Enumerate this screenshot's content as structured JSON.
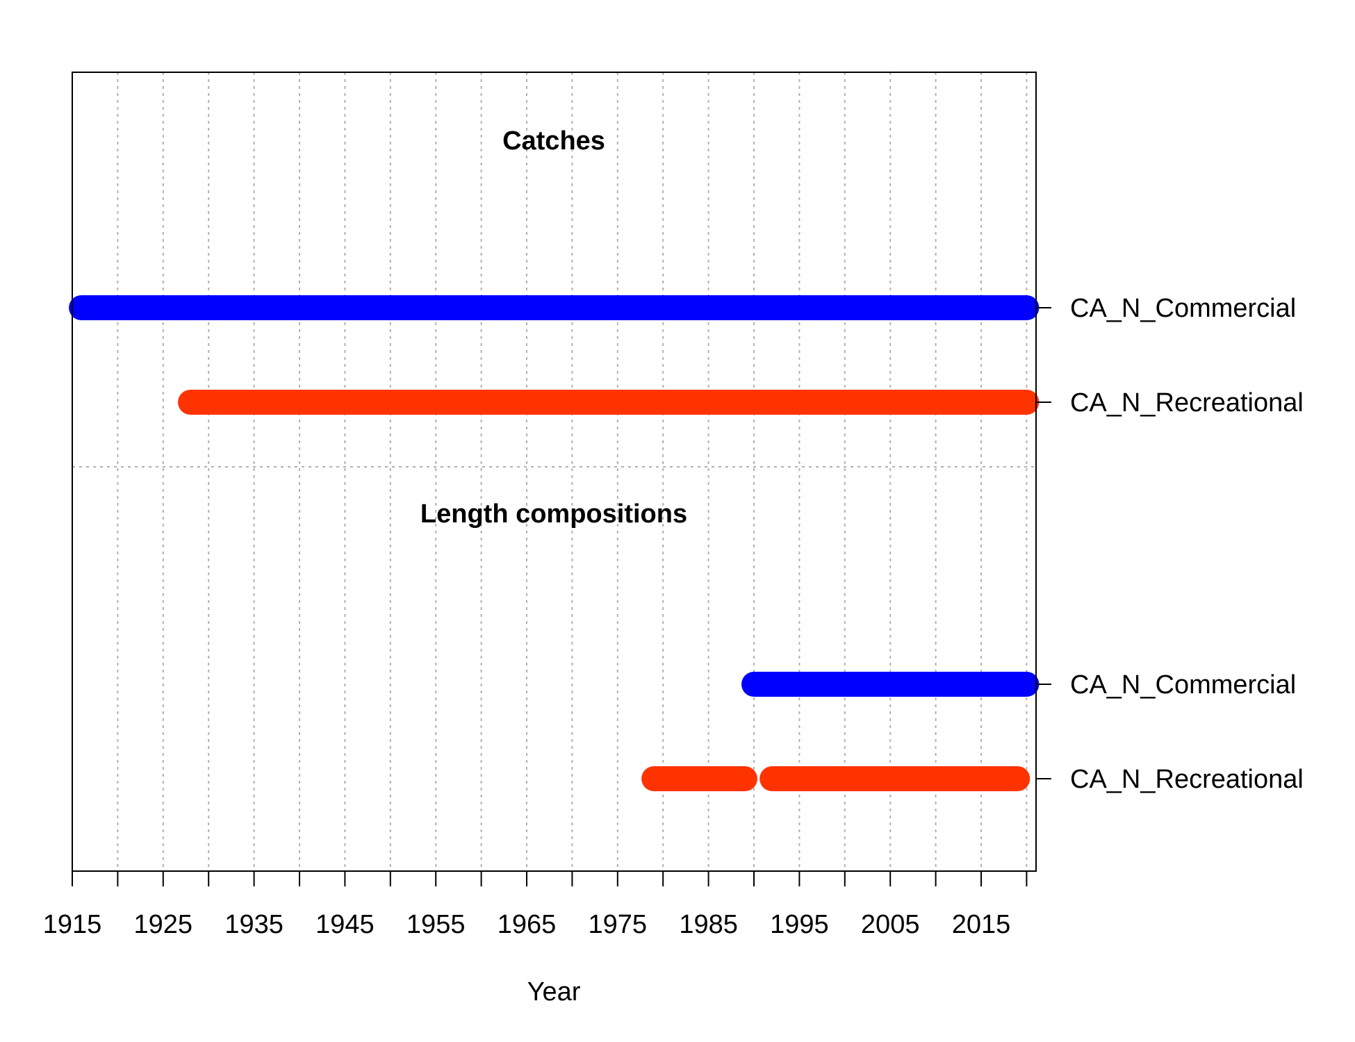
{
  "chart_data": {
    "type": "timeline",
    "xlabel": "Year",
    "xlim": [
      1915,
      2021
    ],
    "x_ticks": [
      1915,
      1920,
      1925,
      1930,
      1935,
      1940,
      1945,
      1950,
      1955,
      1960,
      1965,
      1970,
      1975,
      1980,
      1985,
      1990,
      1995,
      2000,
      2005,
      2010,
      2015,
      2020
    ],
    "x_tick_labels": [
      "1915",
      "1925",
      "1935",
      "1945",
      "1955",
      "1965",
      "1975",
      "1985",
      "1995",
      "2005",
      "2015"
    ],
    "x_tick_label_values": [
      1915,
      1925,
      1935,
      1945,
      1955,
      1965,
      1975,
      1985,
      1995,
      2005,
      2015
    ],
    "grid": true,
    "sections": [
      {
        "title": "Catches",
        "rows": [
          {
            "label": "CA_N_Commercial",
            "color": "#0000ff",
            "segments": [
              [
                1916,
                2020
              ]
            ]
          },
          {
            "label": "CA_N_Recreational",
            "color": "#ff3300",
            "segments": [
              [
                1928,
                2020
              ]
            ]
          }
        ]
      },
      {
        "title": "Length compositions",
        "rows": [
          {
            "label": "CA_N_Commercial",
            "color": "#0000ff",
            "segments": [
              [
                1990,
                2020
              ]
            ]
          },
          {
            "label": "CA_N_Recreational",
            "color": "#ff3300",
            "segments": [
              [
                1979,
                1989
              ],
              [
                1992,
                2019
              ]
            ]
          }
        ]
      }
    ]
  }
}
